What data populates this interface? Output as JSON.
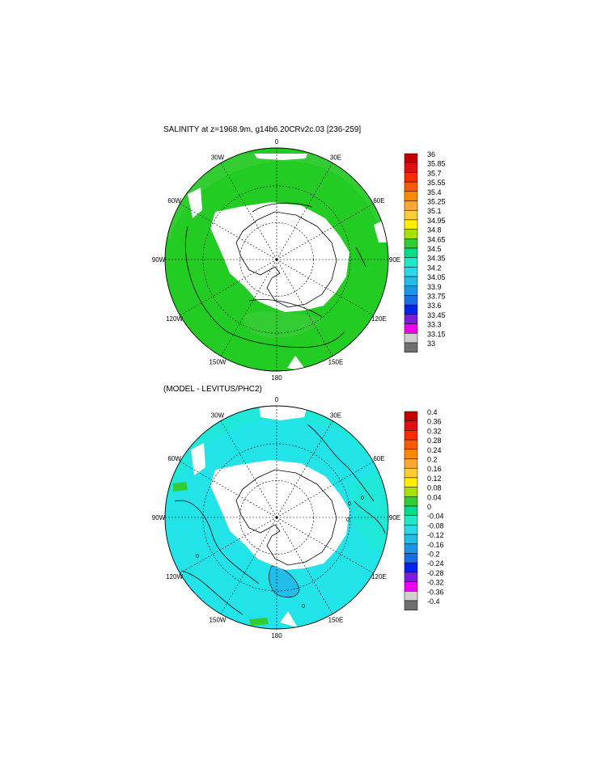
{
  "panels": [
    {
      "title": "SALINITY at z=1968.9m, g14b6.20CRv2c.03 [236-259]",
      "lon_labels": [
        "0",
        "30E",
        "60E",
        "90E",
        "120E",
        "150E",
        "180",
        "150W",
        "120W",
        "90W",
        "60W",
        "30W"
      ],
      "colorbar": {
        "labels": [
          "36",
          "35.85",
          "35.7",
          "35.55",
          "35.4",
          "35.25",
          "35.1",
          "34.95",
          "34.8",
          "34.65",
          "34.5",
          "34.35",
          "34.2",
          "34.05",
          "33.9",
          "33.75",
          "33.6",
          "33.45",
          "33.3",
          "33.15",
          "33"
        ]
      },
      "contour_labels": []
    },
    {
      "title": "(MODEL - LEVITUS/PHC2)",
      "lon_labels": [
        "0",
        "30E",
        "60E",
        "90E",
        "120E",
        "150E",
        "180",
        "150W",
        "120W",
        "90W",
        "60W",
        "30W"
      ],
      "colorbar": {
        "labels": [
          "0.4",
          "0.36",
          "0.32",
          "0.28",
          "0.24",
          "0.2",
          "0.16",
          "0.12",
          "0.08",
          "0.04",
          "0",
          "-0.04",
          "-0.08",
          "-0.12",
          "-0.16",
          "-0.2",
          "-0.24",
          "-0.28",
          "-0.32",
          "-0.36",
          "-0.4"
        ]
      },
      "contour_labels": [
        "0",
        "0",
        "0",
        "0",
        "0"
      ]
    }
  ],
  "colors": {
    "scale": [
      "#c40000",
      "#e01010",
      "#ff2a00",
      "#ff5a00",
      "#ff8a00",
      "#ffa830",
      "#ffcc33",
      "#ffee00",
      "#a8e000",
      "#33cc33",
      "#00dd88",
      "#1ee8c8",
      "#2ad8e8",
      "#22bde8",
      "#1a96e6",
      "#1a6ce8",
      "#0022ee",
      "#7a1edc",
      "#ee00ee",
      "#cfcfcf",
      "#6f6f6f"
    ],
    "ocean_salinity": "#22cc22",
    "ocean_diff": "#20e8d8",
    "cyan_diff": "#22e4e8",
    "ice": "#ffffff",
    "land": "#ffffff"
  }
}
